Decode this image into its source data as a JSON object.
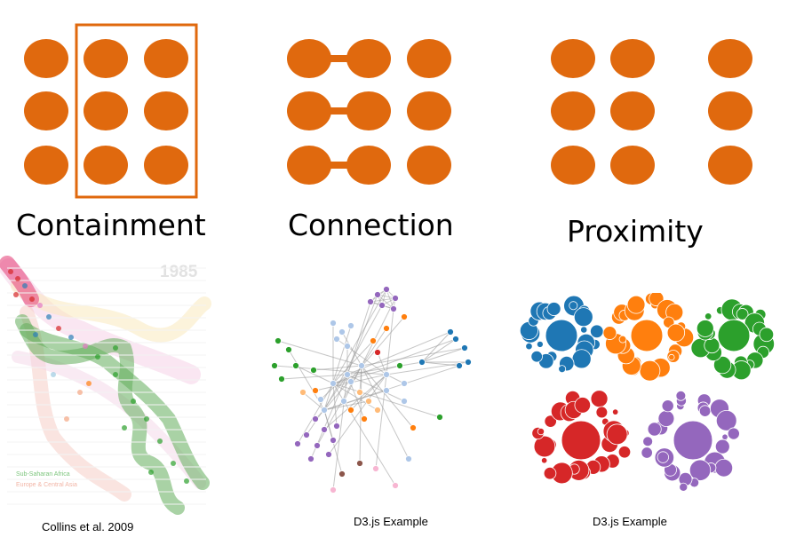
{
  "colors": {
    "dot_orange": "#e0690e",
    "blue": "#1f77b4",
    "orange": "#ff7f0e",
    "green": "#2ca02c",
    "red": "#d62728",
    "purple": "#9467bd",
    "light_blue": "#aec7e8",
    "light_orange": "#ffbb78",
    "pink": "#f7b6d2",
    "brown": "#8c564b",
    "gray_link": "#999999"
  },
  "patterns": {
    "containment": {
      "label": "Containment"
    },
    "connection": {
      "label": "Connection"
    },
    "proximity": {
      "label": "Proximity"
    }
  },
  "examples": {
    "collins": {
      "caption": "Collins et al. 2009",
      "year": "1985",
      "legend_1": "Sub-Saharan Africa",
      "legend_2": "Europe & Central Asia"
    },
    "force_graph": {
      "caption": "D3.js Example"
    },
    "cluster_layout": {
      "caption": "D3.js Example"
    }
  }
}
